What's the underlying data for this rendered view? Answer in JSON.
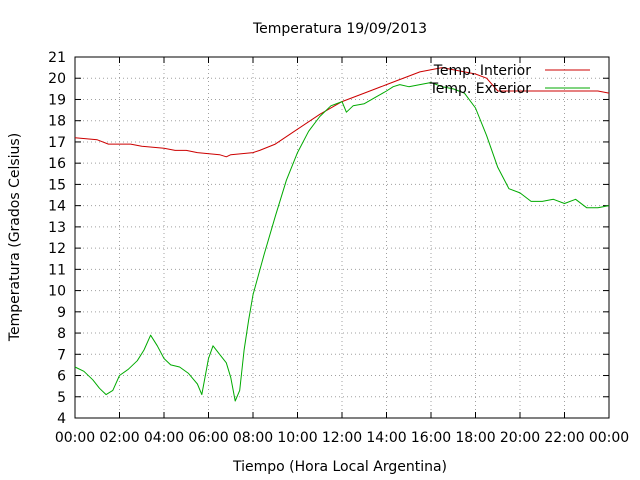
{
  "chart_data": {
    "type": "line",
    "title": "Temperatura 19/09/2013",
    "xlabel": "Tiempo (Hora Local Argentina)",
    "ylabel": "Temperatura (Grados Celsius)",
    "xlim": [
      0,
      24
    ],
    "ylim": [
      4,
      21
    ],
    "x_ticks": [
      "00:00",
      "02:00",
      "04:00",
      "06:00",
      "08:00",
      "10:00",
      "12:00",
      "14:00",
      "16:00",
      "18:00",
      "20:00",
      "22:00",
      "00:00"
    ],
    "y_ticks": [
      "4",
      "5",
      "6",
      "7",
      "8",
      "9",
      "10",
      "11",
      "12",
      "13",
      "14",
      "15",
      "16",
      "17",
      "18",
      "19",
      "20",
      "21"
    ],
    "grid": true,
    "legend_position": "top-right",
    "series": [
      {
        "name": "Temp. Interior",
        "color": "#cc0000",
        "x": [
          0,
          1,
          1.5,
          2.5,
          3,
          4,
          4.5,
          5,
          5.5,
          6.5,
          6.8,
          7,
          8,
          8.3,
          9,
          10,
          11,
          12,
          13,
          13.5,
          14,
          14.5,
          15,
          15.5,
          16,
          16.5,
          17,
          17.5,
          18,
          18.5,
          19,
          20,
          21,
          22,
          23,
          23.5,
          24
        ],
        "y": [
          17.2,
          17.1,
          16.9,
          16.9,
          16.8,
          16.7,
          16.6,
          16.6,
          16.5,
          16.4,
          16.3,
          16.4,
          16.5,
          16.6,
          16.9,
          17.6,
          18.3,
          18.9,
          19.3,
          19.5,
          19.7,
          19.9,
          20.1,
          20.3,
          20.4,
          20.5,
          20.4,
          20.3,
          20.2,
          20.0,
          19.4,
          19.4,
          19.4,
          19.4,
          19.4,
          19.4,
          19.3
        ]
      },
      {
        "name": "Temp. Exterior",
        "color": "#00aa00",
        "x": [
          0,
          0.4,
          0.8,
          1.1,
          1.4,
          1.7,
          2,
          2.4,
          2.8,
          3.1,
          3.4,
          3.7,
          4,
          4.3,
          4.7,
          5.1,
          5.5,
          5.7,
          6,
          6.2,
          6.5,
          6.8,
          7,
          7.2,
          7.4,
          7.6,
          7.8,
          8,
          8.5,
          9,
          9.5,
          10,
          10.5,
          11,
          11.5,
          12,
          12.2,
          12.5,
          13,
          13.5,
          14,
          14.3,
          14.6,
          15,
          15.5,
          16,
          16.5,
          17,
          17.5,
          18,
          18.5,
          19,
          19.5,
          20,
          20.5,
          21,
          21.5,
          22,
          22.5,
          23,
          23.5,
          24
        ],
        "y": [
          6.4,
          6.2,
          5.8,
          5.4,
          5.1,
          5.3,
          6.0,
          6.3,
          6.7,
          7.2,
          7.9,
          7.4,
          6.8,
          6.5,
          6.4,
          6.1,
          5.6,
          5.1,
          6.8,
          7.4,
          7.0,
          6.6,
          5.9,
          4.8,
          5.3,
          7.2,
          8.6,
          9.8,
          11.7,
          13.5,
          15.2,
          16.5,
          17.5,
          18.2,
          18.7,
          18.9,
          18.4,
          18.7,
          18.8,
          19.1,
          19.4,
          19.6,
          19.7,
          19.6,
          19.7,
          19.8,
          19.6,
          19.5,
          19.3,
          18.6,
          17.3,
          15.8,
          14.8,
          14.6,
          14.2,
          14.2,
          14.3,
          14.1,
          14.3,
          13.9,
          13.9,
          14.0
        ]
      }
    ]
  }
}
